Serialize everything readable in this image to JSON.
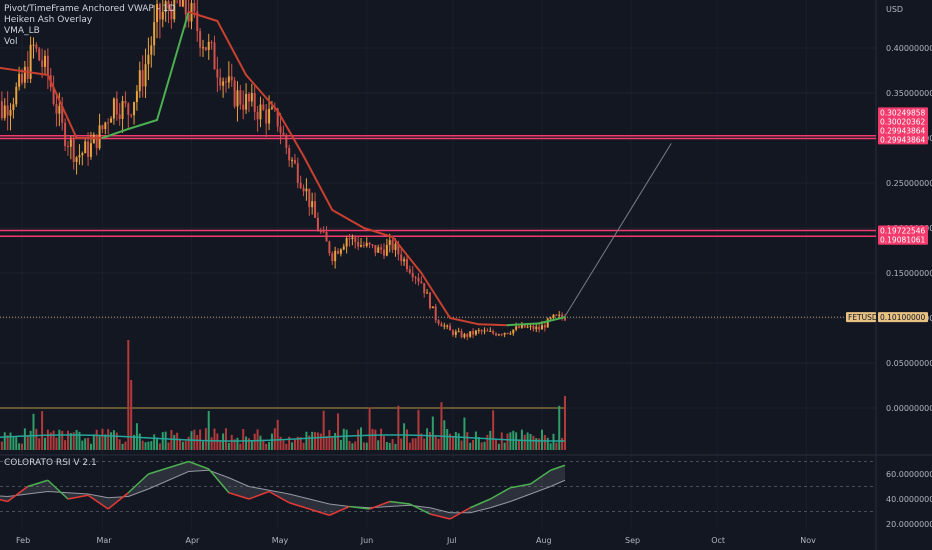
{
  "legend": {
    "items": [
      "Pivot/TimeFrame Anchored VWAP - 1D",
      "Heiken Ash Overlay",
      "VMA_LB",
      "Vol"
    ],
    "rsi_label": "COLORATO RSI V 2.1"
  },
  "axis": {
    "currency": "USD",
    "symbol": "FETUSD"
  },
  "colors": {
    "background": "#131722",
    "candle_up": "#e8a23e",
    "candle_down": "#d0524c",
    "vma_down": "#c8402f",
    "vma_up": "#4caf50",
    "level_line": "#f23b6c",
    "price_tag": "#e8c283",
    "vol_up": "#2e9e6a",
    "vol_down": "#b23a3a",
    "vol_ma": "#26a69a",
    "rsi_up": "#4caf50",
    "rsi_down": "#e53935"
  },
  "chart_data": [
    {
      "type": "candlestick",
      "title": "FETUSD",
      "x_ticks": [
        "Feb",
        "Mar",
        "Apr",
        "May",
        "Jun",
        "Jul",
        "Aug",
        "Sep",
        "Oct",
        "Nov"
      ],
      "y_ticks": [
        "0.40000000",
        "0.35000000",
        "0.30000000",
        "0.25000000",
        "0.20000000",
        "0.15000000",
        "0.10000000",
        "0.05000000",
        "0.00000000"
      ],
      "ylim": [
        -0.005,
        0.455
      ],
      "close_path": [
        [
          "2023-01-20",
          0.36
        ],
        [
          "2023-01-25",
          0.33
        ],
        [
          "2023-02-01",
          0.36
        ],
        [
          "2023-02-05",
          0.4
        ],
        [
          "2023-02-10",
          0.37
        ],
        [
          "2023-02-15",
          0.31
        ],
        [
          "2023-02-20",
          0.28
        ],
        [
          "2023-02-25",
          0.29
        ],
        [
          "2023-03-01",
          0.31
        ],
        [
          "2023-03-05",
          0.34
        ],
        [
          "2023-03-10",
          0.33
        ],
        [
          "2023-03-15",
          0.37
        ],
        [
          "2023-03-20",
          0.43
        ],
        [
          "2023-03-25",
          0.45
        ],
        [
          "2023-03-31",
          0.44
        ],
        [
          "2023-04-05",
          0.41
        ],
        [
          "2023-04-10",
          0.38
        ],
        [
          "2023-04-15",
          0.35
        ],
        [
          "2023-04-20",
          0.34
        ],
        [
          "2023-04-25",
          0.33
        ],
        [
          "2023-05-01",
          0.32
        ],
        [
          "2023-05-05",
          0.28
        ],
        [
          "2023-05-10",
          0.25
        ],
        [
          "2023-05-15",
          0.2
        ],
        [
          "2023-05-20",
          0.17
        ],
        [
          "2023-05-25",
          0.19
        ],
        [
          "2023-05-31",
          0.18
        ],
        [
          "2023-06-05",
          0.175
        ],
        [
          "2023-06-10",
          0.18
        ],
        [
          "2023-06-15",
          0.16
        ],
        [
          "2023-06-20",
          0.14
        ],
        [
          "2023-06-25",
          0.1
        ],
        [
          "2023-06-30",
          0.085
        ],
        [
          "2023-07-05",
          0.08
        ],
        [
          "2023-07-10",
          0.085
        ],
        [
          "2023-07-15",
          0.083
        ],
        [
          "2023-07-20",
          0.085
        ],
        [
          "2023-07-25",
          0.09
        ],
        [
          "2023-07-31",
          0.088
        ],
        [
          "2023-08-05",
          0.1
        ],
        [
          "2023-08-09",
          0.101
        ]
      ],
      "vma_path": [
        [
          "2023-01-20",
          0.38
        ],
        [
          "2023-02-10",
          0.37
        ],
        [
          "2023-02-20",
          0.3
        ],
        [
          "2023-03-01",
          0.3
        ],
        [
          "2023-03-10",
          0.31
        ],
        [
          "2023-03-20",
          0.32
        ],
        [
          "2023-03-31",
          0.44
        ],
        [
          "2023-04-10",
          0.43
        ],
        [
          "2023-04-20",
          0.37
        ],
        [
          "2023-05-01",
          0.33
        ],
        [
          "2023-05-10",
          0.28
        ],
        [
          "2023-05-20",
          0.22
        ],
        [
          "2023-05-31",
          0.2
        ],
        [
          "2023-06-10",
          0.19
        ],
        [
          "2023-06-20",
          0.15
        ],
        [
          "2023-06-30",
          0.1
        ],
        [
          "2023-07-10",
          0.093
        ],
        [
          "2023-07-20",
          0.092
        ],
        [
          "2023-07-31",
          0.094
        ],
        [
          "2023-08-09",
          0.101
        ]
      ],
      "trend_line": [
        [
          "2023-08-09",
          0.102
        ],
        [
          "2023-09-15",
          0.294
        ]
      ],
      "horizontal_levels": [
        {
          "label": "0.30249858",
          "value": 0.3025
        },
        {
          "label": "0.29943864",
          "value": 0.2994
        },
        {
          "label": "0.19722546",
          "value": 0.1972
        },
        {
          "label": "0.19081061",
          "value": 0.1908
        }
      ],
      "price_tags": [
        {
          "label": "0.30249858",
          "value": 0.3285
        },
        {
          "label": "0.30020362",
          "value": 0.3185
        },
        {
          "label": "0.29943864",
          "value": 0.3085
        },
        {
          "label": "0.29943864",
          "value": 0.2985
        },
        {
          "label": "0.19722546",
          "value": 0.1972
        },
        {
          "label": "0.19081061",
          "value": 0.187
        },
        {
          "label": "0.10100000",
          "value": 0.101
        }
      ],
      "current_price": 0.101
    },
    {
      "type": "bar",
      "title": "Vol",
      "categories": [
        "Feb",
        "Mar",
        "Apr",
        "May",
        "Jun",
        "Jul",
        "Aug"
      ],
      "values": [
        0.2,
        0.5,
        0.15,
        0.25,
        0.2,
        0.3,
        0.35
      ]
    },
    {
      "type": "line",
      "title": "COLORATO RSI V 2.1",
      "y_ticks": [
        "60.00000000",
        "40.00000000",
        "20.00000000"
      ],
      "ylim": [
        12,
        75
      ],
      "x": [
        "2023-01-20",
        "2023-01-27",
        "2023-02-03",
        "2023-02-10",
        "2023-02-17",
        "2023-02-24",
        "2023-03-03",
        "2023-03-10",
        "2023-03-17",
        "2023-03-24",
        "2023-03-31",
        "2023-04-07",
        "2023-04-14",
        "2023-04-21",
        "2023-04-28",
        "2023-05-05",
        "2023-05-12",
        "2023-05-19",
        "2023-05-26",
        "2023-06-02",
        "2023-06-09",
        "2023-06-16",
        "2023-06-23",
        "2023-06-30",
        "2023-07-07",
        "2023-07-14",
        "2023-07-21",
        "2023-07-28",
        "2023-08-04",
        "2023-08-09"
      ],
      "series": [
        {
          "values": [
            42,
            38,
            50,
            55,
            40,
            43,
            32,
            45,
            60,
            65,
            70,
            64,
            45,
            40,
            46,
            37,
            32,
            27,
            34,
            32,
            38,
            36,
            28,
            24,
            33,
            40,
            49,
            52,
            63,
            67
          ]
        },
        {
          "values": [
            43,
            42,
            44,
            46,
            45,
            44,
            41,
            42,
            48,
            55,
            62,
            63,
            57,
            50,
            47,
            44,
            40,
            36,
            34,
            33,
            34,
            35,
            33,
            29,
            29,
            33,
            38,
            44,
            50,
            55
          ]
        }
      ],
      "band_levels": [
        70,
        50,
        30
      ]
    }
  ]
}
